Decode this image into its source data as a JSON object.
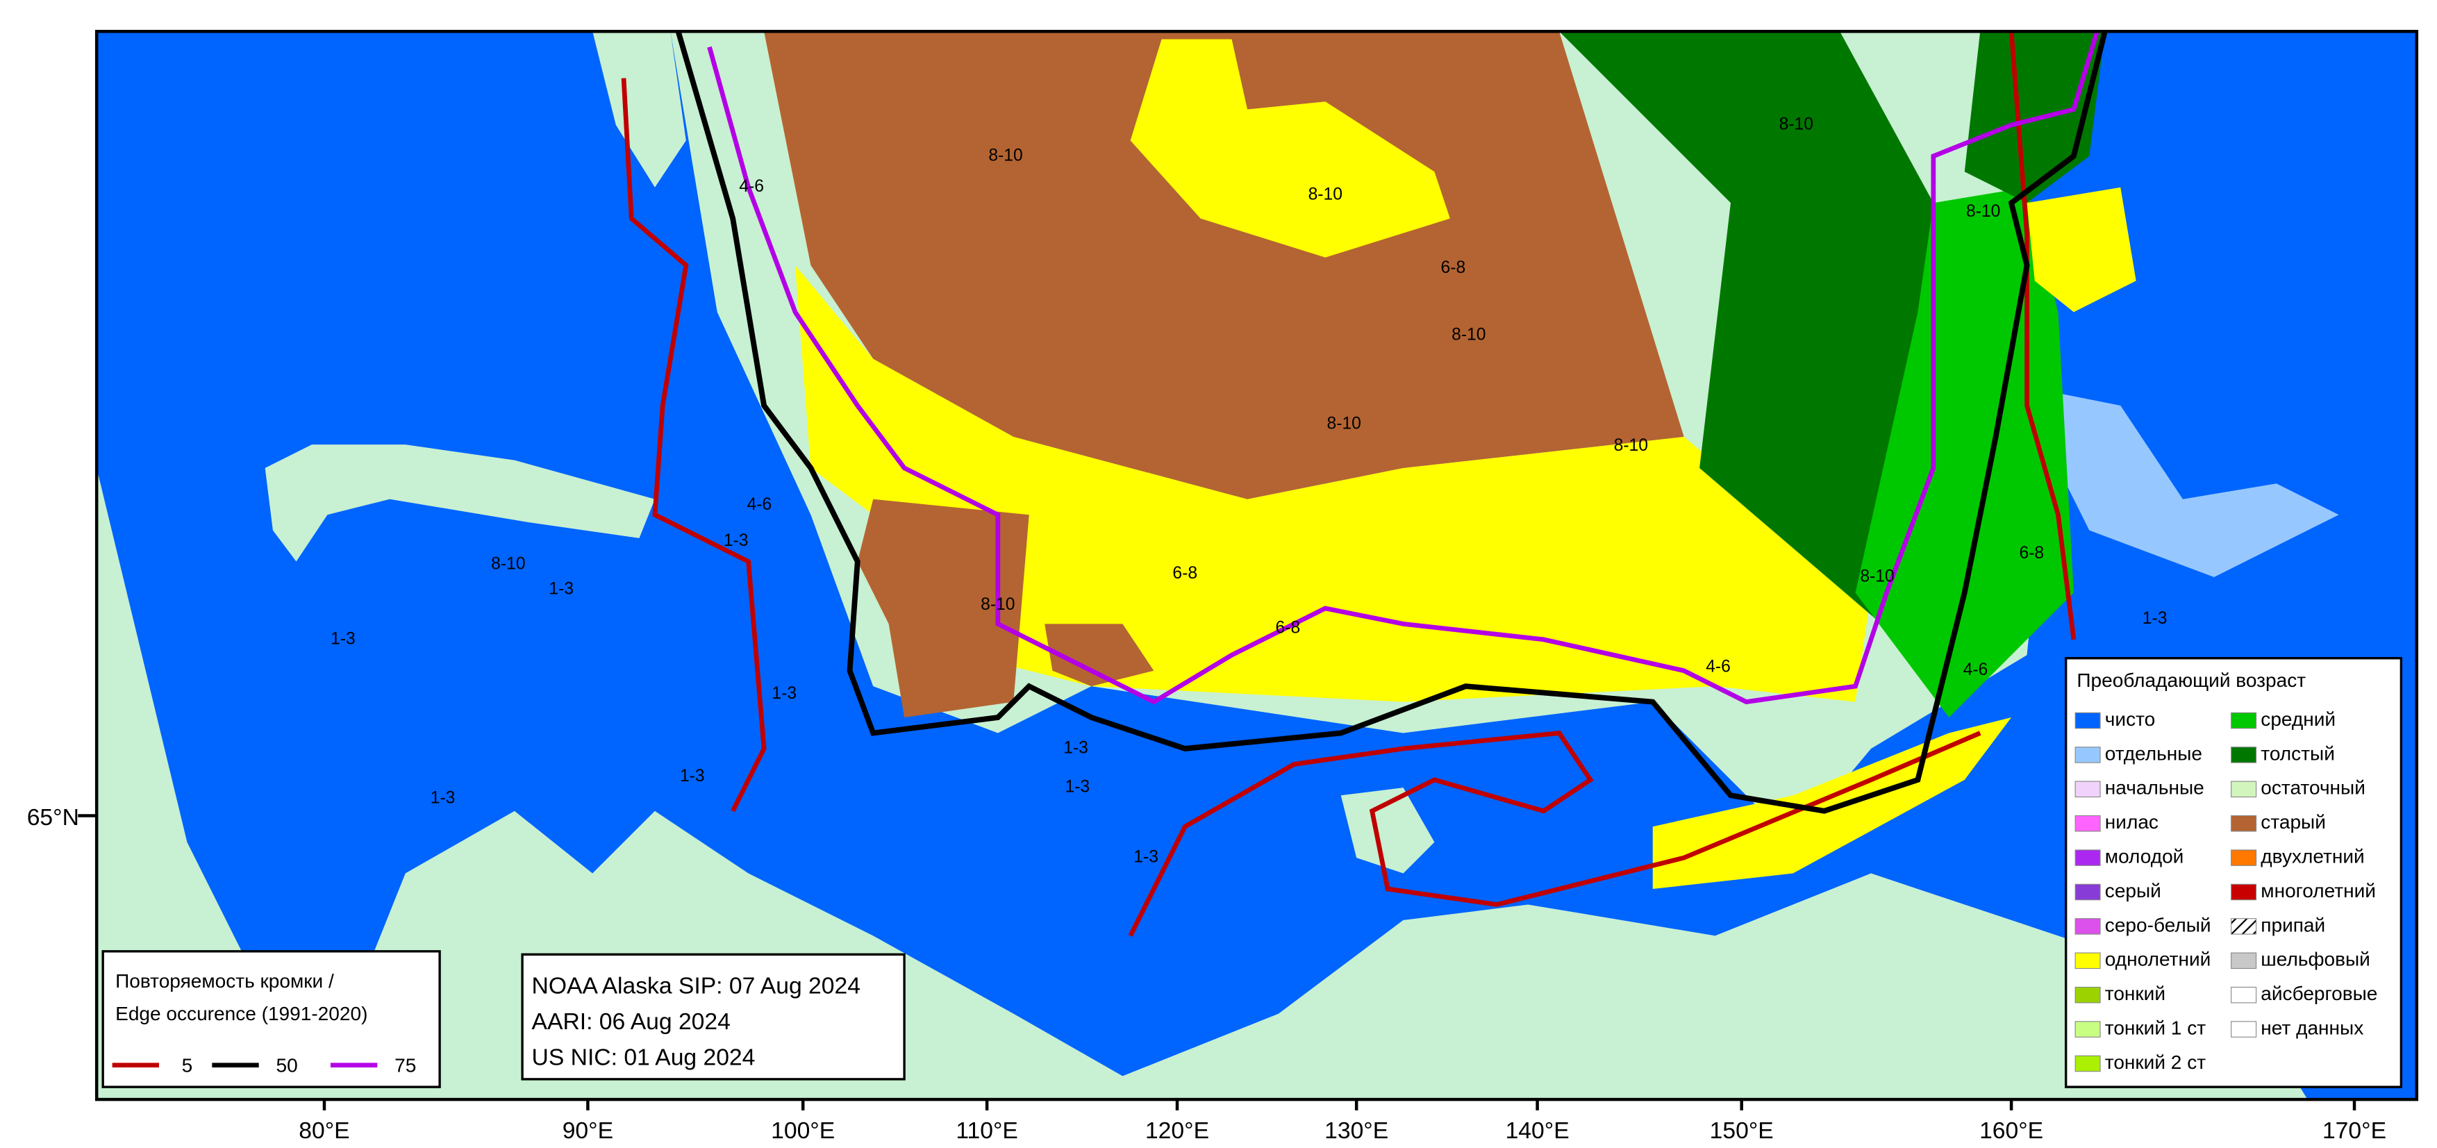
{
  "axes": {
    "x_labels": [
      "80°E",
      "90°E",
      "100°E",
      "110°E",
      "120°E",
      "130°E",
      "140°E",
      "150°E",
      "160°E",
      "170°E"
    ],
    "y_labels": [
      "65°N"
    ]
  },
  "edge_legend": {
    "title_ru": "Повторяемость кромки /",
    "title_en": "Edge occurence (1991-2020)",
    "items": [
      {
        "label": "5",
        "color": "#c00000"
      },
      {
        "label": "50",
        "color": "#000000"
      },
      {
        "label": "75",
        "color": "#b400e6"
      }
    ]
  },
  "sources": [
    "NOAA Alaska SIP: 07 Aug 2024",
    "AARI: 06 Aug 2024",
    "US NIC: 01 Aug 2024"
  ],
  "age_legend": {
    "title": "Преобладающий возраст",
    "items": [
      {
        "label": "чисто",
        "color": "#0064ff"
      },
      {
        "label": "отдельные",
        "color": "#96c8ff"
      },
      {
        "label": "начальные",
        "color": "#f0d2fa"
      },
      {
        "label": "нилас",
        "color": "#ff64ff"
      },
      {
        "label": "молодой",
        "color": "#aa28f0"
      },
      {
        "label": "серый",
        "color": "#873cd7"
      },
      {
        "label": "серо-белый",
        "color": "#dc50eb"
      },
      {
        "label": "однолетний",
        "color": "#ffff00"
      },
      {
        "label": "тонкий",
        "color": "#9bd200"
      },
      {
        "label": "тонкий 1 ст",
        "color": "#c8ff82"
      },
      {
        "label": "тонкий 2 ст",
        "color": "#aaf000"
      },
      {
        "label": "средний",
        "color": "#00c800"
      },
      {
        "label": "толстый",
        "color": "#007800"
      },
      {
        "label": "остаточный",
        "color": "#d2f5be"
      },
      {
        "label": "старый",
        "color": "#b46432"
      },
      {
        "label": "двухлетний",
        "color": "#ff7800"
      },
      {
        "label": "многолетний",
        "color": "#c80000"
      },
      {
        "label": "припай",
        "color": "hatch"
      },
      {
        "label": "шельфовый",
        "color": "#c8c8c8"
      },
      {
        "label": "айсберговые",
        "color": "#ffffff"
      },
      {
        "label": "нет данных",
        "color": "#ffffff"
      }
    ]
  },
  "map_labels": [
    "8-10",
    "8-10",
    "8-10",
    "8-10",
    "8-10",
    "8-10",
    "8-10",
    "6-8",
    "6-8",
    "6-8",
    "8-10",
    "1-3",
    "1-3",
    "1-3",
    "1-3",
    "1-3",
    "4-6",
    "4-6",
    "4-6",
    "6-8",
    "1-3",
    "1-3",
    "1-3",
    "4-6",
    "8-10",
    "1-3",
    "1-3",
    "8-10"
  ]
}
